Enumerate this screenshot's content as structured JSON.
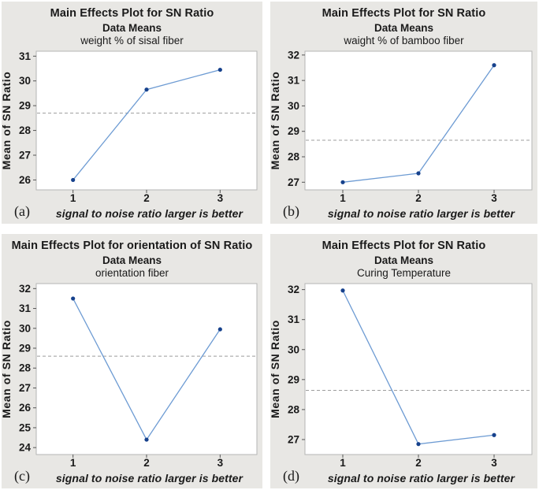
{
  "colors": {
    "page_background": "#ffffff",
    "panel_background": "#e8e7e4",
    "plot_background": "#ffffff",
    "plot_frame": "#b5b5b5",
    "line": "#6d9bd3",
    "marker": "#16418c",
    "reference_line": "#9c9c9c",
    "text": "#1a1a1a"
  },
  "chart_data": [
    {
      "type": "line",
      "panel_label": "(a)",
      "title": "Main Effects Plot for SN Ratio",
      "subtitle": "Data Means",
      "factor": "weight % of sisal fiber",
      "xlabel": "signal to noise ratio larger is better",
      "ylabel": "Mean of SN Ratio",
      "categories": [
        1,
        2,
        3
      ],
      "values": [
        26.0,
        29.65,
        30.45
      ],
      "reference_line": 28.7,
      "yticks": [
        26,
        27,
        28,
        29,
        30,
        31
      ],
      "ylim": [
        25.6,
        31.2
      ],
      "xlim": [
        0.5,
        3.5
      ],
      "grid": false,
      "legend": "none"
    },
    {
      "type": "line",
      "panel_label": "(b)",
      "title": "Main Effects Plot for SN Ratio",
      "subtitle": "Data Means",
      "factor": "waight % of bamboo fiber",
      "xlabel": "signal to noise ratio larger is better",
      "ylabel": "Mean of SN Ratio",
      "categories": [
        1,
        2,
        3
      ],
      "values": [
        27.0,
        27.35,
        31.6
      ],
      "reference_line": 28.65,
      "yticks": [
        27,
        28,
        29,
        30,
        31,
        32
      ],
      "ylim": [
        26.7,
        32.15
      ],
      "xlim": [
        0.5,
        3.5
      ],
      "grid": false,
      "legend": "none"
    },
    {
      "type": "line",
      "panel_label": "(c)",
      "title": "Main Effects Plot for orientation of SN Ratio",
      "subtitle": "Data Means",
      "factor": "orientation fiber",
      "xlabel": "signal to noise ratio larger is better",
      "ylabel": "Mean of SN Ratio",
      "categories": [
        1,
        2,
        3
      ],
      "values": [
        31.5,
        24.4,
        29.95
      ],
      "reference_line": 28.6,
      "yticks": [
        24,
        25,
        26,
        27,
        28,
        29,
        30,
        31,
        32
      ],
      "ylim": [
        23.65,
        32.25
      ],
      "xlim": [
        0.5,
        3.5
      ],
      "grid": false,
      "legend": "none"
    },
    {
      "type": "line",
      "panel_label": "(d)",
      "title": "Main Effects Plot for SN Ratio",
      "subtitle": "Data Means",
      "factor": "Curing Temperature",
      "xlabel": "signal to noise ratio larger is better",
      "ylabel": "Mean of SN Ratio",
      "categories": [
        1,
        2,
        3
      ],
      "values": [
        31.97,
        26.85,
        27.15
      ],
      "reference_line": 28.64,
      "yticks": [
        27,
        28,
        29,
        30,
        31,
        32
      ],
      "ylim": [
        26.5,
        32.2
      ],
      "xlim": [
        0.5,
        3.5
      ],
      "grid": false,
      "legend": "none"
    }
  ]
}
